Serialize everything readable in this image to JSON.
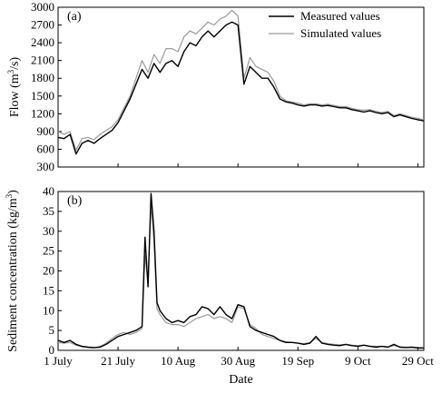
{
  "chart_data": [
    {
      "type": "line",
      "panel_label": "(a)",
      "xlabel": "",
      "ylabel": "Flow (m³/s)",
      "ylim": [
        300,
        3000
      ],
      "yticks": [
        300,
        600,
        900,
        1200,
        1500,
        1800,
        2100,
        2400,
        2700,
        3000
      ],
      "xlim": [
        0,
        122
      ],
      "xtick_positions": [
        0,
        20,
        40,
        60,
        80,
        100,
        120
      ],
      "xtick_labels": [
        "1 July",
        "21 July",
        "10 Aug",
        "30 Aug",
        "19 Sep",
        "9 Oct",
        "29 Oct"
      ],
      "x_unit": "days since 1 July",
      "legend": "top-right",
      "grid": false,
      "series": [
        {
          "name": "Measured values",
          "color": "#000000",
          "points": [
            [
              0,
              800
            ],
            [
              2,
              780
            ],
            [
              4,
              850
            ],
            [
              6,
              520
            ],
            [
              8,
              700
            ],
            [
              10,
              750
            ],
            [
              12,
              700
            ],
            [
              14,
              780
            ],
            [
              16,
              850
            ],
            [
              18,
              920
            ],
            [
              20,
              1050
            ],
            [
              22,
              1250
            ],
            [
              24,
              1450
            ],
            [
              26,
              1700
            ],
            [
              28,
              1950
            ],
            [
              30,
              1800
            ],
            [
              32,
              2050
            ],
            [
              34,
              1900
            ],
            [
              36,
              2050
            ],
            [
              38,
              2100
            ],
            [
              40,
              2000
            ],
            [
              42,
              2250
            ],
            [
              44,
              2400
            ],
            [
              46,
              2350
            ],
            [
              48,
              2500
            ],
            [
              50,
              2600
            ],
            [
              52,
              2500
            ],
            [
              54,
              2600
            ],
            [
              56,
              2700
            ],
            [
              58,
              2750
            ],
            [
              60,
              2700
            ],
            [
              62,
              1700
            ],
            [
              64,
              2000
            ],
            [
              66,
              1900
            ],
            [
              68,
              1800
            ],
            [
              70,
              1800
            ],
            [
              72,
              1650
            ],
            [
              74,
              1450
            ],
            [
              76,
              1400
            ],
            [
              78,
              1380
            ],
            [
              80,
              1350
            ],
            [
              82,
              1330
            ],
            [
              84,
              1350
            ],
            [
              86,
              1350
            ],
            [
              88,
              1330
            ],
            [
              90,
              1340
            ],
            [
              92,
              1320
            ],
            [
              94,
              1300
            ],
            [
              96,
              1300
            ],
            [
              98,
              1270
            ],
            [
              100,
              1250
            ],
            [
              102,
              1230
            ],
            [
              104,
              1250
            ],
            [
              106,
              1220
            ],
            [
              108,
              1200
            ],
            [
              110,
              1220
            ],
            [
              112,
              1150
            ],
            [
              114,
              1180
            ],
            [
              116,
              1150
            ],
            [
              118,
              1120
            ],
            [
              120,
              1100
            ],
            [
              122,
              1080
            ]
          ]
        },
        {
          "name": "Simulated values",
          "color": "#9a9a9a",
          "points": [
            [
              0,
              900
            ],
            [
              2,
              850
            ],
            [
              4,
              900
            ],
            [
              6,
              580
            ],
            [
              8,
              780
            ],
            [
              10,
              800
            ],
            [
              12,
              760
            ],
            [
              14,
              850
            ],
            [
              16,
              920
            ],
            [
              18,
              980
            ],
            [
              20,
              1100
            ],
            [
              22,
              1300
            ],
            [
              24,
              1500
            ],
            [
              26,
              1800
            ],
            [
              28,
              2100
            ],
            [
              30,
              1900
            ],
            [
              32,
              2200
            ],
            [
              34,
              2050
            ],
            [
              36,
              2300
            ],
            [
              38,
              2300
            ],
            [
              40,
              2250
            ],
            [
              42,
              2500
            ],
            [
              44,
              2600
            ],
            [
              46,
              2550
            ],
            [
              48,
              2650
            ],
            [
              50,
              2750
            ],
            [
              52,
              2700
            ],
            [
              54,
              2800
            ],
            [
              56,
              2850
            ],
            [
              58,
              2950
            ],
            [
              60,
              2850
            ],
            [
              62,
              1800
            ],
            [
              64,
              2150
            ],
            [
              66,
              2000
            ],
            [
              68,
              1950
            ],
            [
              70,
              1900
            ],
            [
              72,
              1750
            ],
            [
              74,
              1500
            ],
            [
              76,
              1420
            ],
            [
              78,
              1400
            ],
            [
              80,
              1380
            ],
            [
              82,
              1350
            ],
            [
              84,
              1370
            ],
            [
              86,
              1370
            ],
            [
              88,
              1350
            ],
            [
              90,
              1360
            ],
            [
              92,
              1340
            ],
            [
              94,
              1320
            ],
            [
              96,
              1320
            ],
            [
              98,
              1290
            ],
            [
              100,
              1270
            ],
            [
              102,
              1260
            ],
            [
              104,
              1270
            ],
            [
              106,
              1240
            ],
            [
              108,
              1220
            ],
            [
              110,
              1240
            ],
            [
              112,
              1170
            ],
            [
              114,
              1200
            ],
            [
              116,
              1170
            ],
            [
              118,
              1140
            ],
            [
              120,
              1120
            ],
            [
              122,
              1100
            ]
          ]
        }
      ]
    },
    {
      "type": "line",
      "panel_label": "(b)",
      "xlabel": "Date",
      "ylabel": "Sediment concentration (kg/m³)",
      "ylim": [
        0,
        40
      ],
      "yticks": [
        0,
        5,
        10,
        15,
        20,
        25,
        30,
        35,
        40
      ],
      "xlim": [
        0,
        122
      ],
      "xtick_positions": [
        0,
        20,
        40,
        60,
        80,
        100,
        120
      ],
      "xtick_labels": [
        "1 July",
        "21 July",
        "10 Aug",
        "30 Aug",
        "19 Sep",
        "9 Oct",
        "29 Oct"
      ],
      "x_unit": "days since 1 July",
      "grid": false,
      "series": [
        {
          "name": "Measured values",
          "color": "#000000",
          "points": [
            [
              0,
              2.5
            ],
            [
              2,
              2.0
            ],
            [
              4,
              2.5
            ],
            [
              6,
              1.5
            ],
            [
              8,
              1.0
            ],
            [
              10,
              0.8
            ],
            [
              12,
              0.7
            ],
            [
              14,
              0.8
            ],
            [
              16,
              1.5
            ],
            [
              18,
              2.5
            ],
            [
              20,
              3.5
            ],
            [
              22,
              4.0
            ],
            [
              24,
              4.5
            ],
            [
              26,
              5.0
            ],
            [
              28,
              6.0
            ],
            [
              29,
              28.5
            ],
            [
              30,
              16.0
            ],
            [
              31,
              39.5
            ],
            [
              32,
              30.0
            ],
            [
              33,
              12.0
            ],
            [
              34,
              10.0
            ],
            [
              36,
              8.0
            ],
            [
              38,
              7.0
            ],
            [
              40,
              7.5
            ],
            [
              42,
              7.0
            ],
            [
              44,
              8.5
            ],
            [
              46,
              9.0
            ],
            [
              48,
              11.0
            ],
            [
              50,
              10.5
            ],
            [
              52,
              9.0
            ],
            [
              54,
              11.0
            ],
            [
              56,
              9.0
            ],
            [
              58,
              8.0
            ],
            [
              60,
              11.5
            ],
            [
              62,
              11.0
            ],
            [
              64,
              6.0
            ],
            [
              66,
              5.0
            ],
            [
              68,
              4.5
            ],
            [
              70,
              4.0
            ],
            [
              72,
              3.5
            ],
            [
              74,
              2.5
            ],
            [
              76,
              2.0
            ],
            [
              78,
              2.0
            ],
            [
              80,
              1.8
            ],
            [
              82,
              1.5
            ],
            [
              84,
              1.8
            ],
            [
              86,
              3.5
            ],
            [
              88,
              1.8
            ],
            [
              90,
              1.5
            ],
            [
              92,
              1.3
            ],
            [
              94,
              1.2
            ],
            [
              96,
              1.5
            ],
            [
              98,
              1.2
            ],
            [
              100,
              1.0
            ],
            [
              102,
              1.3
            ],
            [
              104,
              1.0
            ],
            [
              106,
              0.8
            ],
            [
              108,
              1.0
            ],
            [
              110,
              0.8
            ],
            [
              112,
              1.5
            ],
            [
              114,
              0.8
            ],
            [
              116,
              0.7
            ],
            [
              118,
              0.8
            ],
            [
              120,
              0.6
            ],
            [
              122,
              0.6
            ]
          ]
        },
        {
          "name": "Simulated values",
          "color": "#9a9a9a",
          "points": [
            [
              0,
              2.0
            ],
            [
              2,
              1.8
            ],
            [
              4,
              2.0
            ],
            [
              6,
              1.3
            ],
            [
              8,
              0.9
            ],
            [
              10,
              0.7
            ],
            [
              12,
              0.6
            ],
            [
              14,
              1.0
            ],
            [
              16,
              1.8
            ],
            [
              18,
              3.0
            ],
            [
              20,
              4.0
            ],
            [
              22,
              4.5
            ],
            [
              24,
              4.0
            ],
            [
              26,
              4.5
            ],
            [
              28,
              5.5
            ],
            [
              29,
              24.0
            ],
            [
              30,
              17.0
            ],
            [
              31,
              37.0
            ],
            [
              32,
              27.0
            ],
            [
              33,
              10.5
            ],
            [
              34,
              9.0
            ],
            [
              36,
              7.0
            ],
            [
              38,
              6.5
            ],
            [
              40,
              6.5
            ],
            [
              42,
              6.0
            ],
            [
              44,
              7.0
            ],
            [
              46,
              8.0
            ],
            [
              48,
              8.5
            ],
            [
              50,
              9.0
            ],
            [
              52,
              8.0
            ],
            [
              54,
              8.5
            ],
            [
              56,
              8.0
            ],
            [
              58,
              7.0
            ],
            [
              60,
              11.0
            ],
            [
              62,
              10.5
            ],
            [
              64,
              6.5
            ],
            [
              66,
              5.5
            ],
            [
              68,
              4.0
            ],
            [
              70,
              3.5
            ],
            [
              72,
              3.0
            ],
            [
              74,
              2.5
            ],
            [
              76,
              2.2
            ],
            [
              78,
              2.0
            ],
            [
              80,
              1.8
            ],
            [
              82,
              1.7
            ],
            [
              84,
              2.0
            ],
            [
              86,
              3.0
            ],
            [
              88,
              2.0
            ],
            [
              90,
              1.7
            ],
            [
              92,
              1.5
            ],
            [
              94,
              1.4
            ],
            [
              96,
              1.5
            ],
            [
              98,
              1.3
            ],
            [
              100,
              1.2
            ],
            [
              102,
              1.3
            ],
            [
              104,
              1.1
            ],
            [
              106,
              1.0
            ],
            [
              108,
              1.0
            ],
            [
              110,
              0.9
            ],
            [
              112,
              1.2
            ],
            [
              114,
              0.9
            ],
            [
              116,
              0.8
            ],
            [
              118,
              0.8
            ],
            [
              120,
              0.7
            ],
            [
              122,
              0.7
            ]
          ]
        }
      ]
    }
  ]
}
